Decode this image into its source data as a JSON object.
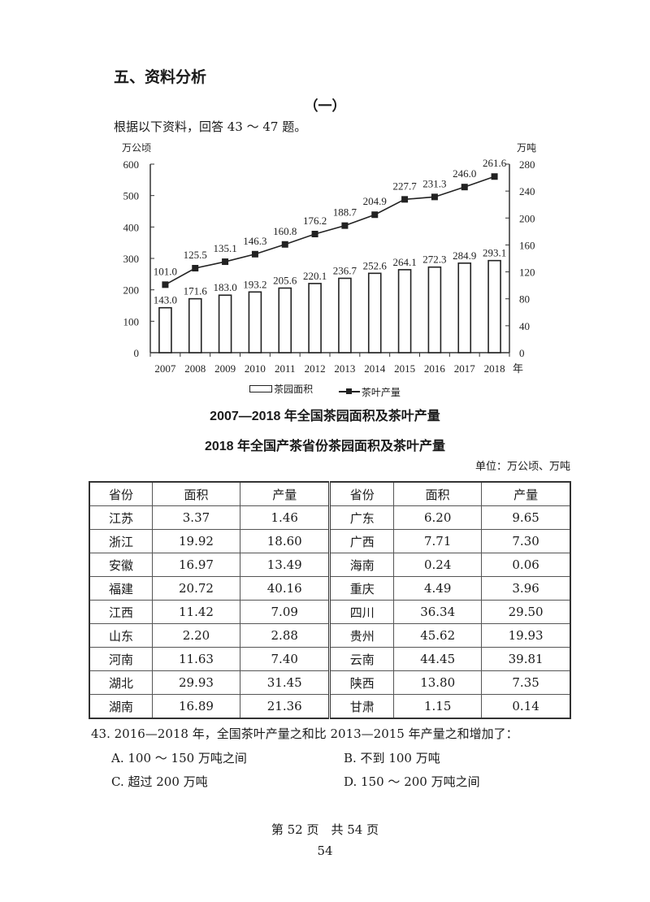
{
  "section": {
    "title": "五、资料分析",
    "part": "（一）",
    "intro": "根据以下资料，回答 43 ～ 47 题。"
  },
  "chart_data": {
    "type": "bar+line",
    "title": "2007—2018 年全国茶园面积及茶叶产量",
    "categories": [
      "2007",
      "2008",
      "2009",
      "2010",
      "2011",
      "2012",
      "2013",
      "2014",
      "2015",
      "2016",
      "2017",
      "2018"
    ],
    "x_suffix": "年",
    "series": [
      {
        "name": "茶园面积",
        "type": "bar",
        "axis": "left",
        "values": [
          143.0,
          171.6,
          183.0,
          193.2,
          205.6,
          220.1,
          236.7,
          252.6,
          264.1,
          272.3,
          284.9,
          293.1
        ]
      },
      {
        "name": "茶叶产量",
        "type": "line",
        "axis": "right",
        "values": [
          101.0,
          125.5,
          135.1,
          146.3,
          160.8,
          176.2,
          188.7,
          204.9,
          227.7,
          231.3,
          246.0,
          261.6
        ]
      }
    ],
    "ylabel_left": "万公顷",
    "ylabel_right": "万吨",
    "ylim_left": [
      0,
      600
    ],
    "yticks_left": [
      0,
      100,
      200,
      300,
      400,
      500,
      600
    ],
    "ylim_right": [
      0,
      280
    ],
    "yticks_right": [
      0,
      40,
      80,
      120,
      160,
      200,
      240,
      280
    ],
    "legend": [
      "茶园面积",
      "茶叶产量"
    ],
    "legend_position": "bottom",
    "grid": false
  },
  "table": {
    "title": "2018 年全国产茶省份茶园面积及茶叶产量",
    "unit": "单位：万公顷、万吨",
    "headers": [
      "省份",
      "面积",
      "产量",
      "省份",
      "面积",
      "产量"
    ],
    "rows": [
      [
        "江苏",
        "3.37",
        "1.46",
        "广东",
        "6.20",
        "9.65"
      ],
      [
        "浙江",
        "19.92",
        "18.60",
        "广西",
        "7.71",
        "7.30"
      ],
      [
        "安徽",
        "16.97",
        "13.49",
        "海南",
        "0.24",
        "0.06"
      ],
      [
        "福建",
        "20.72",
        "40.16",
        "重庆",
        "4.49",
        "3.96"
      ],
      [
        "江西",
        "11.42",
        "7.09",
        "四川",
        "36.34",
        "29.50"
      ],
      [
        "山东",
        "2.20",
        "2.88",
        "贵州",
        "45.62",
        "19.93"
      ],
      [
        "河南",
        "11.63",
        "7.40",
        "云南",
        "44.45",
        "39.81"
      ],
      [
        "湖北",
        "29.93",
        "31.45",
        "陕西",
        "13.80",
        "7.35"
      ],
      [
        "湖南",
        "16.89",
        "21.36",
        "甘肃",
        "1.15",
        "0.14"
      ]
    ]
  },
  "question": {
    "text": "43. 2016—2018 年，全国茶叶产量之和比 2013—2015 年产量之和增加了：",
    "options": {
      "A": "A. 100 ～ 150 万吨之间",
      "B": "B. 不到 100 万吨",
      "C": "C. 超过 200 万吨",
      "D": "D. 150 ～ 200 万吨之间"
    }
  },
  "footer": {
    "page_info": "第 52 页　共 54 页",
    "page_number": "54"
  }
}
